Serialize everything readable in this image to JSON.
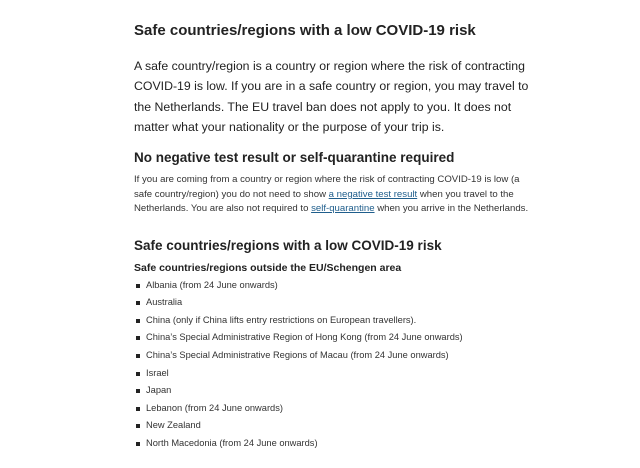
{
  "title": "Safe countries/regions with a low COVID-19 risk",
  "intro": "A safe country/region is a country or region where the risk of contracting COVID-19 is low. If you are in a safe country or region, you may travel to the Netherlands. The EU travel ban does not apply to you. It does not matter what your nationality or the purpose of your trip is.",
  "section1": {
    "heading": "No negative test result or self-quarantine required",
    "text1": "If you are coming from a country or region where the risk of contracting COVID-19 is low (a safe country/region) you do not need to show ",
    "link1": "a negative test result",
    "text2": " when you travel to the Netherlands. You are also not required to ",
    "link2": "self-quarantine",
    "text3": " when you arrive in the Netherlands."
  },
  "section2": {
    "heading": "Safe countries/regions with a low COVID-19 risk",
    "subheading": "Safe countries/regions outside the EU/Schengen area",
    "items": [
      "Albania (from 24 June onwards)",
      "Australia",
      "China (only if China lifts entry restrictions on European travellers).",
      "China’s Special Administrative Region of Hong Kong (from 24 June onwards)",
      "China’s Special Administrative Regions of Macau (from 24 June onwards)",
      "Israel",
      "Japan",
      "Lebanon (from 24 June onwards)",
      "New Zealand",
      "North Macedonia (from 24 June onwards)"
    ]
  }
}
